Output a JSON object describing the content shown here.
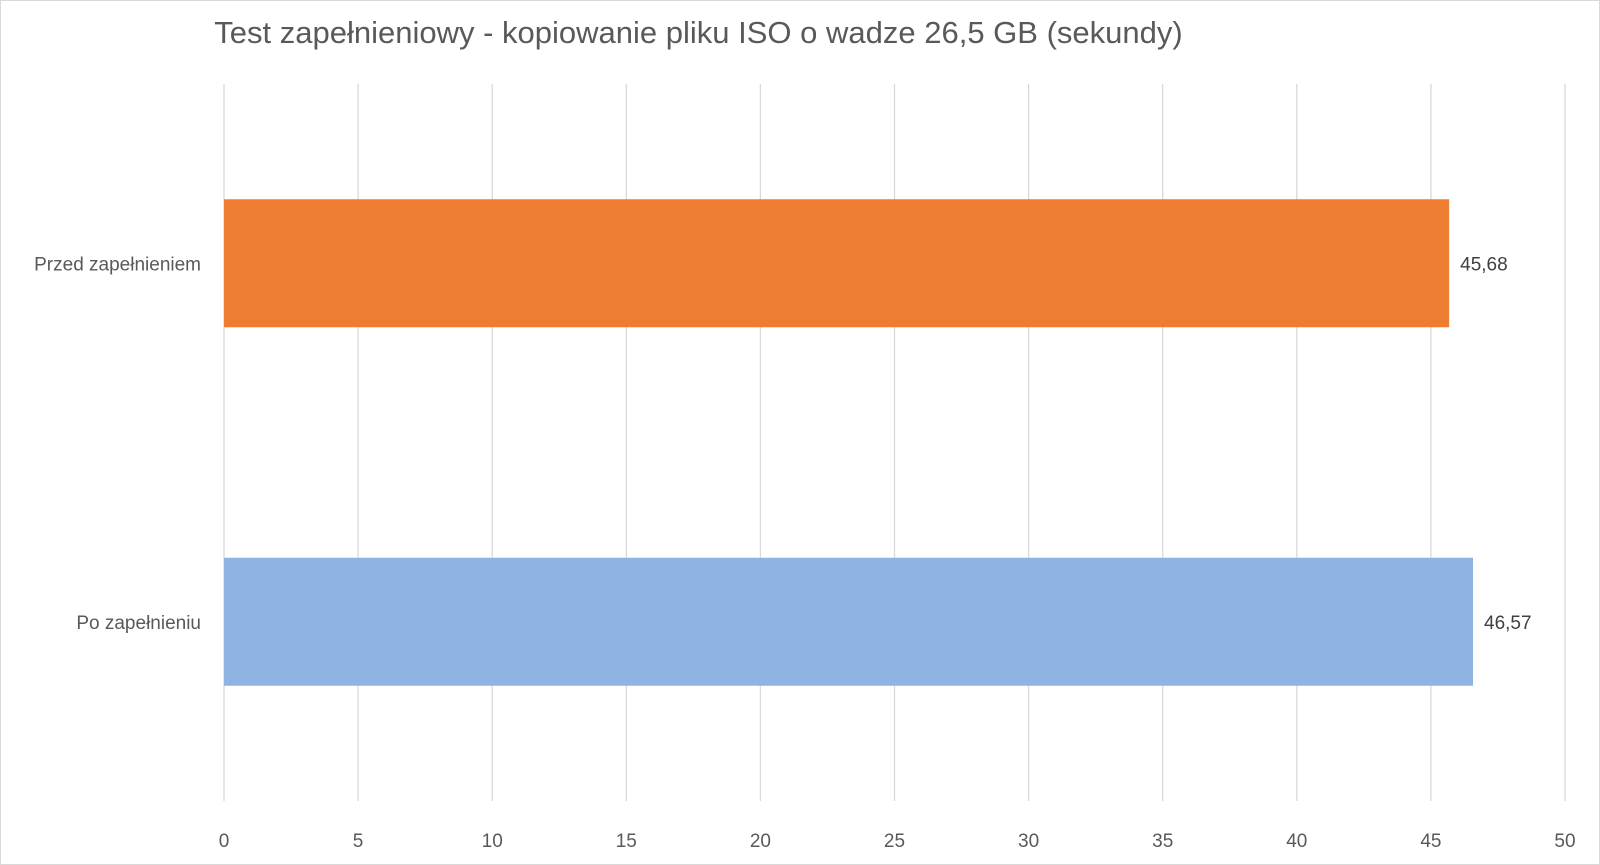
{
  "chart_data": {
    "type": "bar",
    "orientation": "horizontal",
    "title": "Test zapełnieniowy - kopiowanie pliku ISO o wadze 26,5 GB (sekundy)",
    "xlabel": "",
    "ylabel": "",
    "xlim": [
      0,
      50
    ],
    "ticks": [
      "0",
      "5",
      "10",
      "15",
      "20",
      "25",
      "30",
      "35",
      "40",
      "45",
      "50"
    ],
    "tick_values": [
      0,
      5,
      10,
      15,
      20,
      25,
      30,
      35,
      40,
      45,
      50
    ],
    "categories": [
      "Przed zapełnieniem",
      "Po zapełnieniu"
    ],
    "values": [
      45.68,
      46.57
    ],
    "data_labels": [
      "45,68",
      "46,57"
    ],
    "colors": [
      "#ED7D31",
      "#8FB4E3"
    ],
    "grid": true,
    "legend": "none"
  }
}
